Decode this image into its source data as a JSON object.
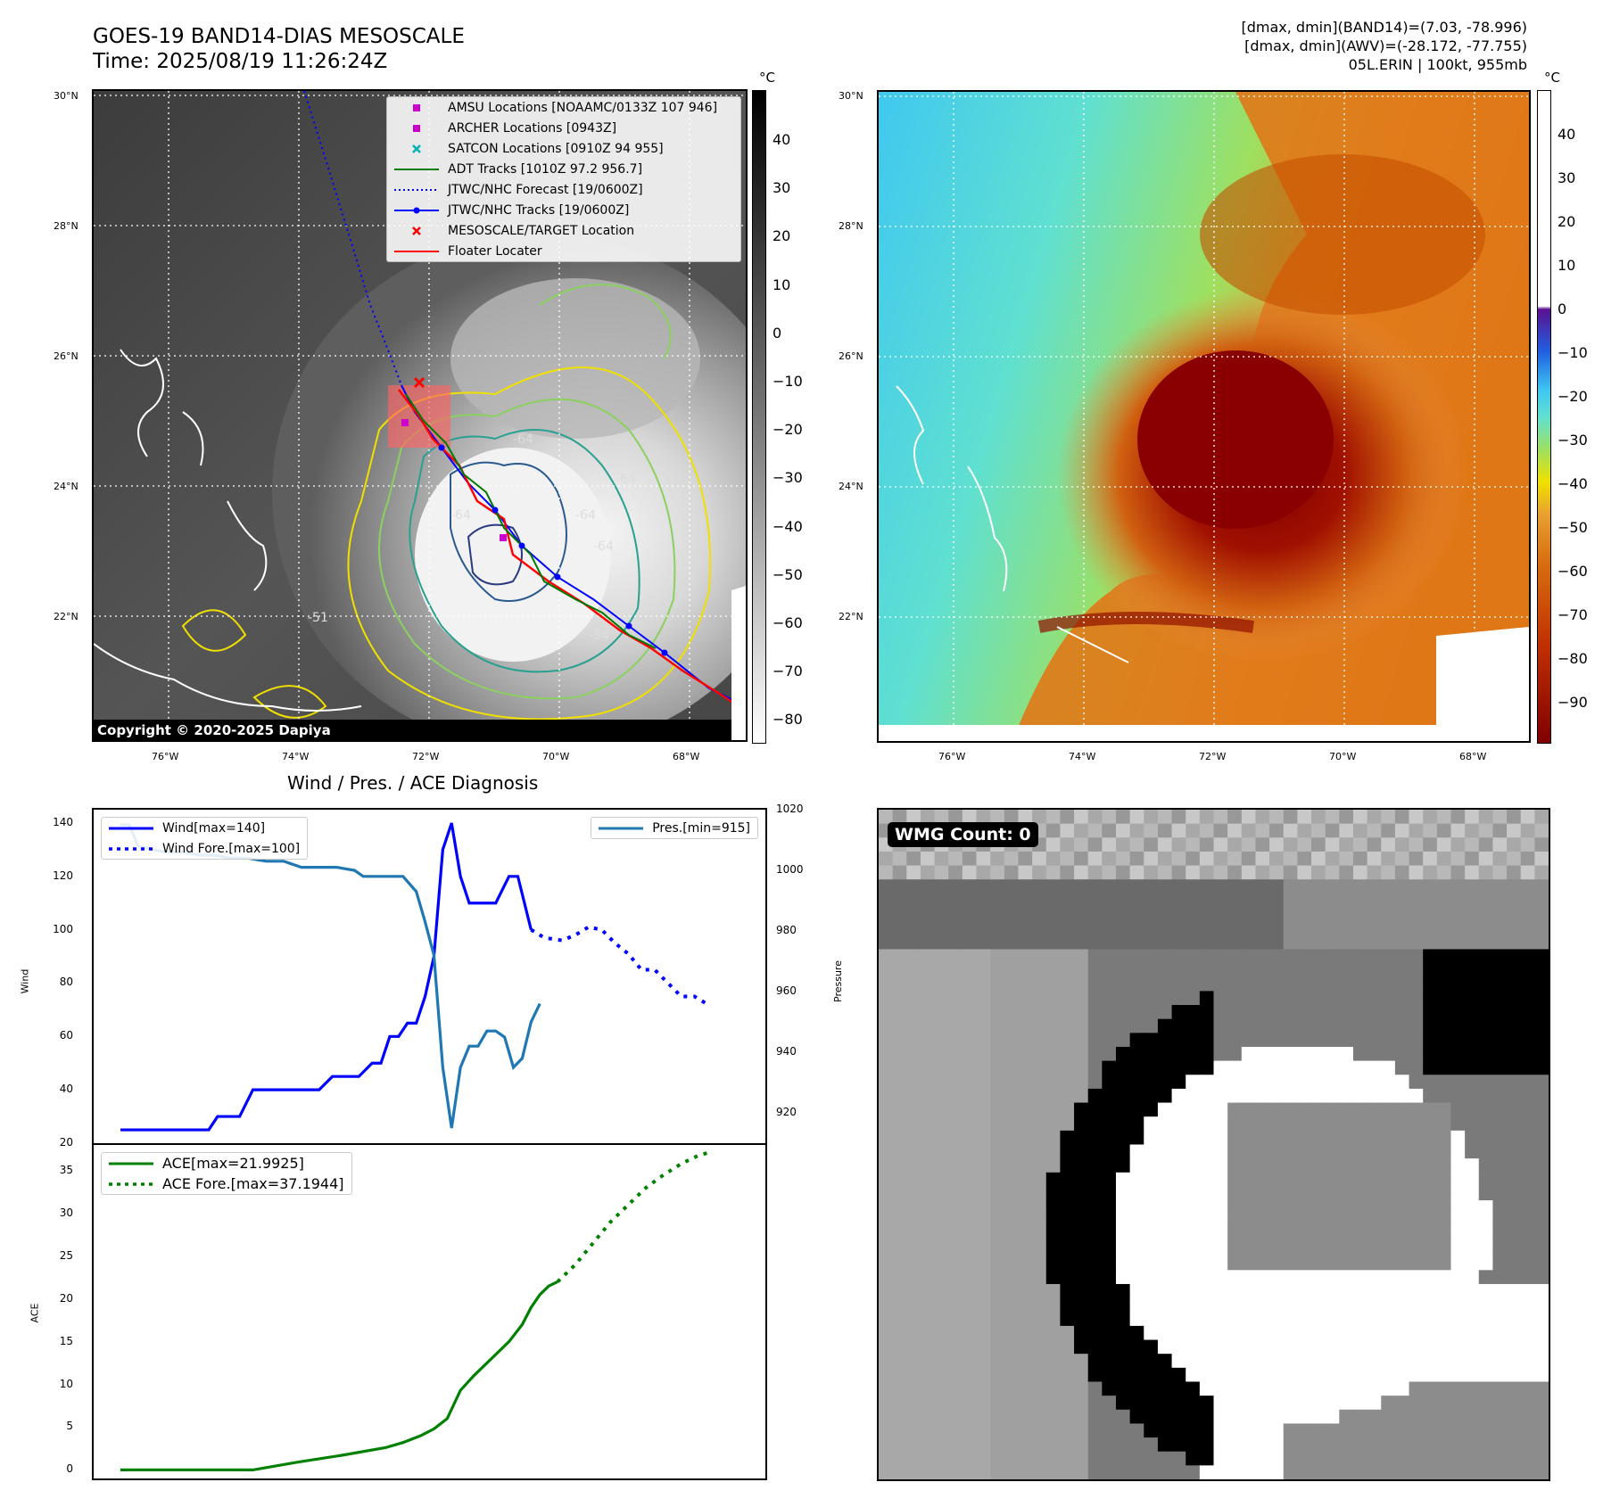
{
  "header": {
    "title": "GOES-19 BAND14-DIAS MESOSCALE",
    "time": "Time: 2025/08/19 11:26:24Z",
    "stats": [
      "[dmax, dmin](BAND14)=(7.03, -78.996)",
      "[dmax, dmin](AWV)=(-28.172, -77.755)",
      "05L.ERIN | 100kt, 955mb"
    ]
  },
  "maps": {
    "lat_labels": [
      "30°N",
      "28°N",
      "26°N",
      "24°N",
      "22°N"
    ],
    "lon_labels": [
      "76°W",
      "74°W",
      "72°W",
      "70°W",
      "68°W"
    ],
    "copyright": "Copyright © 2020-2025 Dapiya",
    "contour_labels": [
      "-64",
      "-64",
      "-64",
      "-64",
      "-54",
      "-64",
      "-51"
    ],
    "legend": [
      {
        "label": "AMSU Locations [NOAAMC/0133Z 107 946]",
        "marker": "square",
        "color": "#cc00cc"
      },
      {
        "label": "ARCHER Locations [0943Z]",
        "marker": "square",
        "color": "#cc00cc"
      },
      {
        "label": "SATCON Locations [0910Z 94 955]",
        "marker": "x",
        "color": "#00b4b4"
      },
      {
        "label": "ADT Tracks [1010Z 97.2 956.7]",
        "marker": "line",
        "color": "#007a00"
      },
      {
        "label": "JTWC/NHC Forecast [19/0600Z]",
        "marker": "dotted",
        "color": "#0000ff"
      },
      {
        "label": "JTWC/NHC Tracks [19/0600Z]",
        "marker": "line-dot",
        "color": "#0000ff"
      },
      {
        "label": "MESOSCALE/TARGET Location",
        "marker": "x",
        "color": "#ff0000"
      },
      {
        "label": "Floater Locater",
        "marker": "line",
        "color": "#ff0000"
      }
    ],
    "colorbar1": {
      "unit": "°C",
      "ticks": [
        "40",
        "30",
        "20",
        "10",
        "0",
        "−10",
        "−20",
        "−30",
        "−40",
        "−50",
        "−60",
        "−70",
        "−80"
      ]
    },
    "colorbar2": {
      "unit": "°C",
      "ticks": [
        "40",
        "30",
        "20",
        "10",
        "0",
        "−10",
        "−20",
        "−30",
        "−40",
        "−50",
        "−60",
        "−70",
        "−80",
        "−90"
      ]
    }
  },
  "wmg": {
    "label": "WMG Count: 0"
  },
  "chart_data": [
    {
      "type": "line",
      "title": "Wind / Pres. / ACE Diagnosis",
      "ylabel": "Wind",
      "y2label": "Pressure",
      "ylim": [
        20,
        145
      ],
      "y2lim": [
        910,
        1020
      ],
      "yticks": [
        "140",
        "120",
        "100",
        "80",
        "60",
        "40",
        "20"
      ],
      "y2ticks": [
        "1020",
        "1000",
        "980",
        "960",
        "940",
        "920"
      ],
      "series": [
        {
          "name": "Wind[max=140]",
          "color": "#0000ff",
          "style": "solid",
          "values": [
            [
              0,
              25
            ],
            [
              5,
              25
            ],
            [
              10,
              25
            ],
            [
              15,
              25
            ],
            [
              20,
              25
            ],
            [
              22,
              30
            ],
            [
              25,
              30
            ],
            [
              27,
              30
            ],
            [
              30,
              40
            ],
            [
              33,
              40
            ],
            [
              36,
              40
            ],
            [
              39,
              40
            ],
            [
              42,
              40
            ],
            [
              45,
              40
            ],
            [
              48,
              45
            ],
            [
              51,
              45
            ],
            [
              54,
              45
            ],
            [
              57,
              50
            ],
            [
              59,
              50
            ],
            [
              61,
              60
            ],
            [
              63,
              60
            ],
            [
              65,
              65
            ],
            [
              67,
              65
            ],
            [
              69,
              75
            ],
            [
              71,
              90
            ],
            [
              73,
              130
            ],
            [
              75,
              140
            ],
            [
              77,
              120
            ],
            [
              79,
              110
            ],
            [
              82,
              110
            ],
            [
              85,
              110
            ],
            [
              88,
              120
            ],
            [
              90,
              120
            ],
            [
              93,
              100
            ]
          ]
        },
        {
          "name": "Wind Fore.[max=100]",
          "color": "#0000ff",
          "style": "dotted",
          "values": [
            [
              93,
              100
            ],
            [
              96,
              97
            ],
            [
              100,
              96
            ],
            [
              103,
              98
            ],
            [
              106,
              101
            ],
            [
              109,
              100
            ],
            [
              112,
              95
            ],
            [
              115,
              91
            ],
            [
              118,
              85
            ],
            [
              121,
              85
            ],
            [
              124,
              80
            ],
            [
              127,
              75
            ],
            [
              130,
              75
            ],
            [
              133,
              72
            ]
          ]
        },
        {
          "name": "Pres.[min=915]",
          "color": "#1f77b4",
          "style": "solid",
          "axis": "right",
          "values": [
            [
              0,
              1015
            ],
            [
              2,
              1015
            ],
            [
              4,
              1008
            ],
            [
              7,
              1007
            ],
            [
              10,
              1006
            ],
            [
              14,
              1006
            ],
            [
              18,
              1005
            ],
            [
              21,
              1005
            ],
            [
              25,
              1004
            ],
            [
              29,
              1004
            ],
            [
              33,
              1003
            ],
            [
              37,
              1003
            ],
            [
              41,
              1001
            ],
            [
              45,
              1001
            ],
            [
              49,
              1001
            ],
            [
              53,
              1000
            ],
            [
              55,
              998
            ],
            [
              58,
              998
            ],
            [
              61,
              998
            ],
            [
              64,
              998
            ],
            [
              67,
              993
            ],
            [
              69,
              983
            ],
            [
              71,
              972
            ],
            [
              73,
              935
            ],
            [
              75,
              915
            ],
            [
              77,
              935
            ],
            [
              79,
              942
            ],
            [
              81,
              942
            ],
            [
              83,
              947
            ],
            [
              85,
              947
            ],
            [
              87,
              945
            ],
            [
              89,
              935
            ],
            [
              91,
              938
            ],
            [
              93,
              950
            ],
            [
              95,
              956
            ]
          ]
        },
        {
          "name": "Wind Fore.[max=100]",
          "note": "legend entry"
        }
      ]
    },
    {
      "type": "line",
      "ylabel": "ACE",
      "ylim": [
        -1,
        38
      ],
      "yticks": [
        "35",
        "30",
        "25",
        "20",
        "15",
        "10",
        "5",
        "0"
      ],
      "series": [
        {
          "name": "ACE[max=21.9925]",
          "color": "#008000",
          "style": "solid",
          "values": [
            [
              0,
              0
            ],
            [
              10,
              0
            ],
            [
              20,
              0
            ],
            [
              30,
              0
            ],
            [
              40,
              0.9
            ],
            [
              50,
              1.7
            ],
            [
              60,
              2.6
            ],
            [
              64,
              3.2
            ],
            [
              68,
              4
            ],
            [
              71,
              4.8
            ],
            [
              74,
              6
            ],
            [
              77,
              9.3
            ],
            [
              80,
              11
            ],
            [
              84,
              13
            ],
            [
              88,
              15
            ],
            [
              91,
              17
            ],
            [
              93,
              19
            ],
            [
              95,
              20.5
            ],
            [
              97,
              21.5
            ],
            [
              99,
              22
            ]
          ]
        },
        {
          "name": "ACE Fore.[max=37.1944]",
          "color": "#008000",
          "style": "dotted",
          "values": [
            [
              99,
              22
            ],
            [
              103,
              24
            ],
            [
              107,
              26.5
            ],
            [
              111,
              29
            ],
            [
              115,
              31
            ],
            [
              119,
              33
            ],
            [
              123,
              34.5
            ],
            [
              127,
              35.8
            ],
            [
              131,
              36.8
            ],
            [
              134,
              37.2
            ]
          ]
        }
      ]
    }
  ]
}
